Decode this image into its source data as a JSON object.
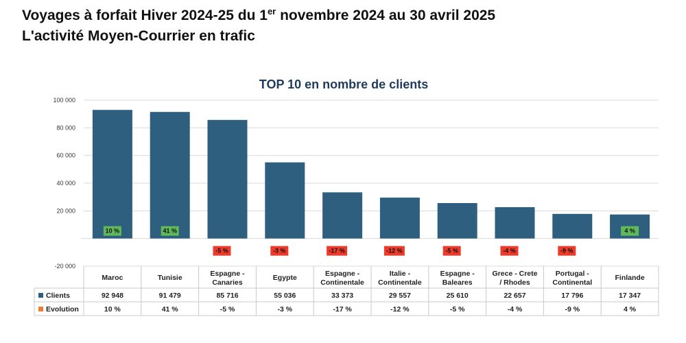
{
  "header": {
    "line1_pre": "Voyages à forfait Hiver 2024-25 du 1",
    "line1_sup": "er",
    "line1_post": " novembre 2024 au 30 avril 2025",
    "line2": "L'activité Moyen-Courrier en trafic"
  },
  "colors": {
    "bar": "#2e5f7f",
    "positive": "#5fb85a",
    "negative": "#ee3a2a",
    "evolution_legend": "#ee7d31",
    "title": "#1f3b5c"
  },
  "chart_data": {
    "type": "bar",
    "title": "TOP 10 en nombre de clients",
    "categories": [
      [
        "Maroc"
      ],
      [
        "Tunisie"
      ],
      [
        "Espagne -",
        "Canaries"
      ],
      [
        "Egypte"
      ],
      [
        "Espagne -",
        "Continentale"
      ],
      [
        "Italie -",
        "Continentale"
      ],
      [
        "Espagne -",
        "Baleares"
      ],
      [
        "Grece - Crete",
        "/ Rhodes"
      ],
      [
        "Portugal -",
        "Continental"
      ],
      [
        "Finlande"
      ]
    ],
    "series": [
      {
        "name": "Clients",
        "values": [
          92948,
          91479,
          85716,
          55036,
          33373,
          29557,
          25610,
          22657,
          17796,
          17347
        ],
        "labels": [
          "92 948",
          "91 479",
          "85 716",
          "55 036",
          "33 373",
          "29 557",
          "25 610",
          "22 657",
          "17 796",
          "17 347"
        ]
      },
      {
        "name": "Evolution",
        "values": [
          10,
          41,
          -5,
          -3,
          -17,
          -12,
          -5,
          -4,
          -9,
          4
        ],
        "labels": [
          "10 %",
          "41 %",
          "-5 %",
          "-3 %",
          "-17 %",
          "-12 %",
          "-5 %",
          "-4 %",
          "-9 %",
          "4 %"
        ]
      }
    ],
    "evolution_tags": [
      "10 %",
      "41 %",
      "-5 %",
      "-3 %",
      "-17 %",
      "-12 %",
      "-5 %",
      "-4 %",
      "-9 %",
      "4 %"
    ],
    "ylim": [
      -20000,
      100000
    ],
    "yticks": [
      -20000,
      0,
      20000,
      40000,
      60000,
      80000,
      100000
    ],
    "ytick_labels": [
      "-20 000",
      "",
      "20 000",
      "40 000",
      "60 000",
      "80 000",
      "100 000"
    ],
    "xlabel": "",
    "ylabel": ""
  }
}
